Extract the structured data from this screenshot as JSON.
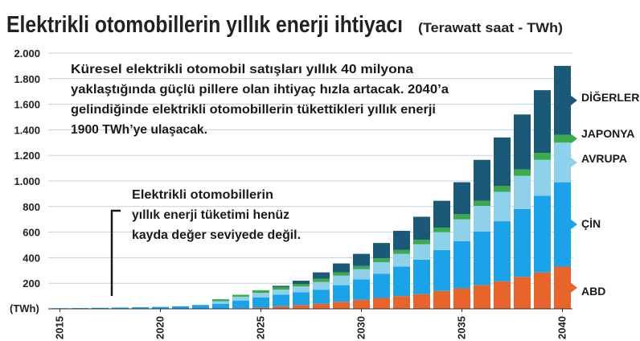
{
  "chart_data": {
    "type": "bar",
    "stacked": true,
    "title": "Elektrikli otomobillerin yıllık enerji ihtiyacı",
    "subtitle": "(Terawatt saat - TWh)",
    "ylabel": "(TWh)",
    "ylim": [
      0,
      2000
    ],
    "yticks": [
      "2.000",
      "1.800",
      "1.600",
      "1.400",
      "1.200",
      "1.000",
      "800",
      "600",
      "400",
      "200"
    ],
    "ytick_values": [
      2000,
      1800,
      1600,
      1400,
      1200,
      1000,
      800,
      600,
      400,
      200
    ],
    "xticks": [
      "2015",
      "2020",
      "2025",
      "2030",
      "2035",
      "2040"
    ],
    "x_tick_years": [
      2015,
      2020,
      2025,
      2030,
      2035,
      2040
    ],
    "categories": [
      2015,
      2016,
      2017,
      2018,
      2019,
      2020,
      2021,
      2022,
      2023,
      2024,
      2025,
      2026,
      2027,
      2028,
      2029,
      2030,
      2031,
      2032,
      2033,
      2034,
      2035,
      2036,
      2037,
      2038,
      2039,
      2040
    ],
    "series": [
      {
        "name": "ABD",
        "color": "#e8642b",
        "values": [
          0,
          0,
          0,
          0,
          0,
          0,
          0,
          0,
          0,
          5,
          10,
          20,
          30,
          40,
          55,
          70,
          85,
          100,
          115,
          140,
          160,
          185,
          215,
          250,
          285,
          330
        ]
      },
      {
        "name": "ÇİN",
        "color": "#1aa3e8",
        "values": [
          5,
          6,
          8,
          10,
          12,
          15,
          20,
          30,
          40,
          60,
          80,
          90,
          100,
          110,
          130,
          160,
          190,
          230,
          270,
          320,
          370,
          420,
          470,
          530,
          600,
          660
        ]
      },
      {
        "name": "AVRUPA",
        "color": "#8fd0ea",
        "values": [
          0,
          0,
          0,
          0,
          0,
          0,
          0,
          0,
          20,
          30,
          35,
          40,
          45,
          60,
          75,
          80,
          90,
          100,
          120,
          140,
          170,
          200,
          230,
          260,
          280,
          310
        ]
      },
      {
        "name": "JAPONYA",
        "color": "#3aaa4a",
        "values": [
          0,
          0,
          0,
          0,
          0,
          0,
          0,
          0,
          15,
          15,
          20,
          20,
          20,
          25,
          25,
          25,
          30,
          30,
          35,
          35,
          40,
          40,
          45,
          50,
          55,
          60
        ]
      },
      {
        "name": "DİĞERLERİ",
        "color": "#1a5a78",
        "values": [
          0,
          0,
          0,
          0,
          0,
          0,
          0,
          0,
          0,
          0,
          0,
          10,
          25,
          50,
          70,
          95,
          120,
          150,
          180,
          210,
          250,
          320,
          380,
          430,
          490,
          540
        ]
      }
    ],
    "legend_labels": [
      "DİĞERLERİ",
      "JAPONYA",
      "AVRUPA",
      "ÇİN",
      "ABD"
    ],
    "legend_placement": "right",
    "grid": "horizontal",
    "annotations": [
      {
        "lines": [
          "Küresel elektrikli otomobil satışları yıllık 40 milyona",
          "yaklaştığında güçlü pillere olan ihtiyaç hızla artacak. 2040’a",
          "gelindiğinde elektrikli otomobillerin tükettikleri yıllık enerji",
          "1900 TWh’ye ulaşacak."
        ]
      },
      {
        "lines": [
          "Elektrikli otomobillerin",
          "yıllık enerji tüketimi henüz",
          "kayda değer seviyede değil."
        ]
      }
    ]
  },
  "colors": {
    "background": "#ffffff",
    "grid": "#bcd3e3",
    "bracket": "#1a1a1a"
  }
}
